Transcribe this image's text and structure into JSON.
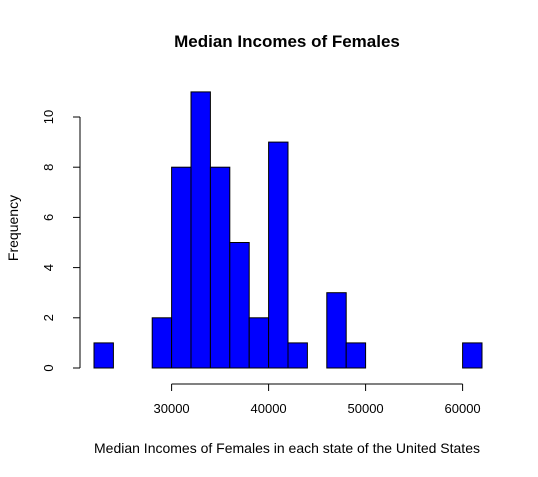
{
  "chart_data": {
    "type": "bar",
    "title": "Median Incomes of Females",
    "xlabel": "Median Incomes of Females in each state of the United States",
    "ylabel": "Frequency",
    "bin_width": 2000,
    "bins": [
      {
        "start": 22000,
        "end": 24000,
        "count": 1
      },
      {
        "start": 24000,
        "end": 26000,
        "count": 0
      },
      {
        "start": 26000,
        "end": 28000,
        "count": 0
      },
      {
        "start": 28000,
        "end": 30000,
        "count": 2
      },
      {
        "start": 30000,
        "end": 32000,
        "count": 8
      },
      {
        "start": 32000,
        "end": 34000,
        "count": 11
      },
      {
        "start": 34000,
        "end": 36000,
        "count": 8
      },
      {
        "start": 36000,
        "end": 38000,
        "count": 5
      },
      {
        "start": 38000,
        "end": 40000,
        "count": 2
      },
      {
        "start": 40000,
        "end": 42000,
        "count": 9
      },
      {
        "start": 42000,
        "end": 44000,
        "count": 1
      },
      {
        "start": 44000,
        "end": 46000,
        "count": 0
      },
      {
        "start": 46000,
        "end": 48000,
        "count": 3
      },
      {
        "start": 48000,
        "end": 50000,
        "count": 1
      },
      {
        "start": 50000,
        "end": 52000,
        "count": 0
      },
      {
        "start": 52000,
        "end": 54000,
        "count": 0
      },
      {
        "start": 54000,
        "end": 56000,
        "count": 0
      },
      {
        "start": 56000,
        "end": 58000,
        "count": 0
      },
      {
        "start": 58000,
        "end": 60000,
        "count": 0
      },
      {
        "start": 60000,
        "end": 62000,
        "count": 1
      }
    ],
    "xlim": [
      22000,
      62000
    ],
    "ylim": [
      0,
      11
    ],
    "x_ticks": [
      30000,
      40000,
      50000,
      60000
    ],
    "x_tick_labels": [
      "30000",
      "40000",
      "50000",
      "60000"
    ],
    "y_ticks": [
      0,
      2,
      4,
      6,
      8,
      10
    ],
    "y_tick_labels": [
      "0",
      "2",
      "4",
      "6",
      "8",
      "10"
    ],
    "bar_color": "#0000ff",
    "grid": false,
    "legend": "none"
  }
}
